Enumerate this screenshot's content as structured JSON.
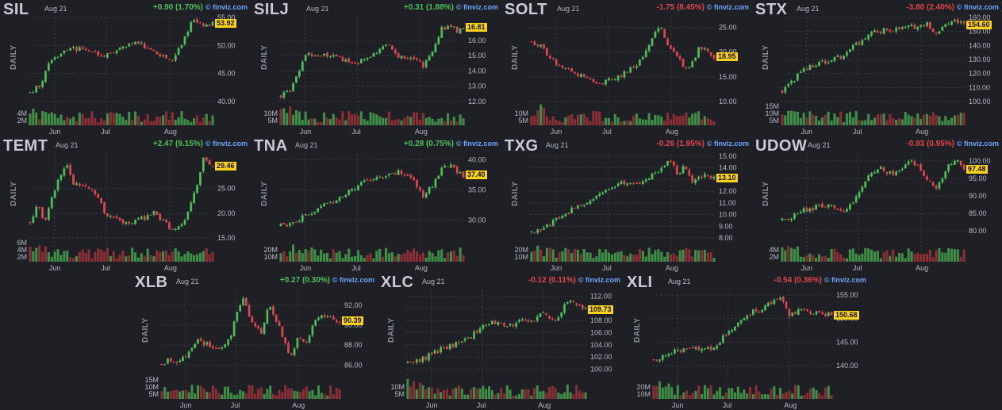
{
  "date_label": "Aug 21",
  "brand": "finviz.com",
  "period_label": "DAILY",
  "colors": {
    "up": "#4cc05a",
    "down": "#e0474c",
    "vol_up": "#3f8f47",
    "vol_down": "#8a2f35",
    "label_bg": "#ffd21a",
    "grid": "#3a3c45"
  },
  "chart_data": [
    {
      "type": "candlestick",
      "ticker": "SIL",
      "change": "+0.90 (1.70%)",
      "direction": "up",
      "last_price": "53.92",
      "ylim": [
        40,
        55
      ],
      "y_ticks": [
        "55.00",
        "50.00",
        "45.00",
        "40.00"
      ],
      "volume_ticks": [
        "4M",
        "2M"
      ],
      "x_ticks": [
        "Jun",
        "Jul",
        "Aug"
      ],
      "price_path": [
        [
          0,
          41.5
        ],
        [
          0.06,
          43
        ],
        [
          0.1,
          46.5
        ],
        [
          0.14,
          47.8
        ],
        [
          0.2,
          49.2
        ],
        [
          0.28,
          49.4
        ],
        [
          0.35,
          48.5
        ],
        [
          0.42,
          48.2
        ],
        [
          0.5,
          49.5
        ],
        [
          0.58,
          51
        ],
        [
          0.64,
          49.2
        ],
        [
          0.72,
          48
        ],
        [
          0.78,
          47.3
        ],
        [
          0.84,
          50.5
        ],
        [
          0.88,
          54.2
        ],
        [
          0.93,
          54.5
        ],
        [
          0.97,
          53.2
        ],
        [
          1,
          53.9
        ]
      ]
    },
    {
      "type": "candlestick",
      "ticker": "SILJ",
      "change": "+0.31 (1.88%)",
      "direction": "up",
      "last_price": "16.81",
      "ylim": [
        12,
        17.5
      ],
      "y_ticks": [
        "16.00",
        "15.00",
        "14.00",
        "13.00",
        "12.00"
      ],
      "volume_ticks": [
        "10M",
        "5M"
      ],
      "x_ticks": [
        "Jun",
        "Jul",
        "Aug"
      ],
      "price_path": [
        [
          0,
          12.4
        ],
        [
          0.06,
          12.9
        ],
        [
          0.1,
          14.1
        ],
        [
          0.15,
          15.2
        ],
        [
          0.2,
          15.1
        ],
        [
          0.28,
          15.0
        ],
        [
          0.35,
          14.7
        ],
        [
          0.42,
          14.5
        ],
        [
          0.5,
          15.0
        ],
        [
          0.58,
          15.7
        ],
        [
          0.64,
          15.0
        ],
        [
          0.72,
          14.8
        ],
        [
          0.78,
          14.4
        ],
        [
          0.84,
          15.5
        ],
        [
          0.88,
          16.8
        ],
        [
          0.93,
          17.0
        ],
        [
          0.97,
          16.5
        ],
        [
          1,
          16.8
        ]
      ]
    },
    {
      "type": "candlestick",
      "ticker": "SOLT",
      "change": "-1.75 (8.45%)",
      "direction": "down",
      "last_price": "18.95",
      "ylim": [
        10,
        27
      ],
      "y_ticks": [
        "25.00",
        "20.00",
        "15.00",
        "10.00"
      ],
      "volume_ticks": [
        "10M",
        "5M"
      ],
      "x_ticks": [
        "Jun",
        "Jul",
        "Aug"
      ],
      "price_path": [
        [
          0,
          22
        ],
        [
          0.04,
          21.5
        ],
        [
          0.1,
          19
        ],
        [
          0.16,
          17
        ],
        [
          0.22,
          16
        ],
        [
          0.3,
          14.5
        ],
        [
          0.36,
          13.5
        ],
        [
          0.42,
          14.5
        ],
        [
          0.5,
          15.5
        ],
        [
          0.56,
          17
        ],
        [
          0.62,
          19.5
        ],
        [
          0.66,
          23
        ],
        [
          0.7,
          25.5
        ],
        [
          0.74,
          22
        ],
        [
          0.8,
          19
        ],
        [
          0.84,
          17
        ],
        [
          0.88,
          17.5
        ],
        [
          0.92,
          21
        ],
        [
          0.96,
          20
        ],
        [
          1,
          19
        ]
      ]
    },
    {
      "type": "candlestick",
      "ticker": "STX",
      "change": "-3.80 (2.40%)",
      "direction": "down",
      "last_price": "154.60",
      "ylim": [
        100,
        160
      ],
      "y_ticks": [
        "160.00",
        "150.00",
        "140.00",
        "130.00",
        "120.00",
        "110.00",
        "100.00"
      ],
      "volume_ticks": [
        "15M",
        "10M",
        "5M"
      ],
      "x_ticks": [
        "Jun",
        "Jul",
        "Aug"
      ],
      "price_path": [
        [
          0,
          108
        ],
        [
          0.04,
          112
        ],
        [
          0.1,
          121
        ],
        [
          0.18,
          127
        ],
        [
          0.25,
          128
        ],
        [
          0.32,
          132
        ],
        [
          0.4,
          140
        ],
        [
          0.48,
          148
        ],
        [
          0.56,
          151
        ],
        [
          0.62,
          151
        ],
        [
          0.7,
          153
        ],
        [
          0.76,
          153.5
        ],
        [
          0.8,
          157
        ],
        [
          0.84,
          146
        ],
        [
          0.88,
          154
        ],
        [
          0.93,
          157
        ],
        [
          0.97,
          157
        ],
        [
          1,
          154.6
        ]
      ]
    },
    {
      "type": "candlestick",
      "ticker": "TEMT",
      "change": "+2.47 (9.15%)",
      "direction": "up",
      "last_price": "29.46",
      "ylim": [
        15,
        32
      ],
      "y_ticks": [
        "25.00",
        "20.00",
        "15.00"
      ],
      "volume_ticks": [
        "6M",
        "4M",
        "2M"
      ],
      "x_ticks": [
        "Jun",
        "Jul",
        "Aug"
      ],
      "price_path": [
        [
          0,
          18
        ],
        [
          0.04,
          22
        ],
        [
          0.08,
          18
        ],
        [
          0.12,
          23
        ],
        [
          0.16,
          27
        ],
        [
          0.2,
          30
        ],
        [
          0.24,
          26
        ],
        [
          0.3,
          26
        ],
        [
          0.36,
          24
        ],
        [
          0.42,
          19.5
        ],
        [
          0.5,
          18.5
        ],
        [
          0.56,
          18
        ],
        [
          0.62,
          19
        ],
        [
          0.68,
          20
        ],
        [
          0.74,
          18
        ],
        [
          0.78,
          16.5
        ],
        [
          0.84,
          18
        ],
        [
          0.88,
          22
        ],
        [
          0.92,
          26
        ],
        [
          0.95,
          31
        ],
        [
          1,
          29.5
        ]
      ]
    },
    {
      "type": "candlestick",
      "ticker": "TNA",
      "change": "+0.28 (0.75%)",
      "direction": "up",
      "last_price": "37.40",
      "ylim": [
        27,
        41
      ],
      "y_ticks": [
        "40.00",
        "35.00",
        "30.00"
      ],
      "volume_ticks": [
        "20M",
        "10M"
      ],
      "x_ticks": [
        "Jun",
        "Jul",
        "Aug"
      ],
      "price_path": [
        [
          0,
          29
        ],
        [
          0.06,
          29.5
        ],
        [
          0.12,
          30.5
        ],
        [
          0.2,
          32
        ],
        [
          0.28,
          33
        ],
        [
          0.35,
          34.5
        ],
        [
          0.42,
          35.5
        ],
        [
          0.5,
          37
        ],
        [
          0.58,
          37.5
        ],
        [
          0.66,
          38
        ],
        [
          0.72,
          37
        ],
        [
          0.78,
          34
        ],
        [
          0.84,
          36
        ],
        [
          0.9,
          39.5
        ],
        [
          0.95,
          38.5
        ],
        [
          1,
          37.4
        ]
      ]
    },
    {
      "type": "candlestick",
      "ticker": "TXG",
      "change": "-0.26 (1.95%)",
      "direction": "down",
      "last_price": "13.10",
      "ylim": [
        8,
        15.2
      ],
      "y_ticks": [
        "15.00",
        "14.00",
        "13.00",
        "12.00",
        "11.00",
        "10.00",
        "9.00",
        "8.00"
      ],
      "volume_ticks": [
        "20M",
        "10M"
      ],
      "x_ticks": [
        "Jun",
        "Jul",
        "Aug"
      ],
      "price_path": [
        [
          0,
          8.6
        ],
        [
          0.06,
          8.7
        ],
        [
          0.12,
          9.4
        ],
        [
          0.2,
          10.2
        ],
        [
          0.28,
          10.9
        ],
        [
          0.35,
          11.4
        ],
        [
          0.42,
          12.3
        ],
        [
          0.5,
          12.7
        ],
        [
          0.58,
          12.6
        ],
        [
          0.64,
          13.2
        ],
        [
          0.7,
          13.8
        ],
        [
          0.76,
          14.8
        ],
        [
          0.8,
          13.4
        ],
        [
          0.84,
          14.1
        ],
        [
          0.88,
          12.9
        ],
        [
          0.92,
          13.3
        ],
        [
          0.96,
          13.4
        ],
        [
          1,
          13.1
        ]
      ]
    },
    {
      "type": "candlestick",
      "ticker": "UDOW",
      "change": "-0.93 (0.95%)",
      "direction": "down",
      "last_price": "97.48",
      "ylim": [
        78,
        102
      ],
      "y_ticks": [
        "100.00",
        "95.00",
        "90.00",
        "85.00",
        "80.00"
      ],
      "volume_ticks": [
        "4M",
        "2M"
      ],
      "x_ticks": [
        "Jun",
        "Jul",
        "Aug"
      ],
      "price_path": [
        [
          0,
          83
        ],
        [
          0.06,
          84
        ],
        [
          0.12,
          86
        ],
        [
          0.2,
          87
        ],
        [
          0.28,
          87
        ],
        [
          0.34,
          85
        ],
        [
          0.4,
          89
        ],
        [
          0.48,
          96
        ],
        [
          0.54,
          98
        ],
        [
          0.6,
          96
        ],
        [
          0.66,
          98
        ],
        [
          0.72,
          100
        ],
        [
          0.78,
          96
        ],
        [
          0.84,
          92
        ],
        [
          0.88,
          95
        ],
        [
          0.92,
          99
        ],
        [
          0.96,
          100
        ],
        [
          1,
          97.5
        ]
      ]
    },
    {
      "type": "candlestick",
      "ticker": "XLB",
      "change": "+0.27 (0.30%)",
      "direction": "up",
      "last_price": "90.39",
      "ylim": [
        85,
        93.5
      ],
      "y_ticks": [
        "92.00",
        "90.00",
        "88.00",
        "86.00"
      ],
      "volume_ticks": [
        "15M",
        "10M",
        "5M"
      ],
      "x_ticks": [
        "Jun",
        "Jul",
        "Aug"
      ],
      "price_path": [
        [
          0,
          86.2
        ],
        [
          0.05,
          86.6
        ],
        [
          0.1,
          86.3
        ],
        [
          0.15,
          87.2
        ],
        [
          0.2,
          88.5
        ],
        [
          0.26,
          88
        ],
        [
          0.32,
          87.5
        ],
        [
          0.38,
          88.5
        ],
        [
          0.42,
          91
        ],
        [
          0.46,
          92.6
        ],
        [
          0.5,
          90.5
        ],
        [
          0.56,
          89
        ],
        [
          0.6,
          92
        ],
        [
          0.64,
          90.5
        ],
        [
          0.68,
          89
        ],
        [
          0.72,
          86.5
        ],
        [
          0.76,
          88.5
        ],
        [
          0.82,
          88.5
        ],
        [
          0.86,
          90.5
        ],
        [
          0.92,
          91
        ],
        [
          1,
          90.4
        ]
      ]
    },
    {
      "type": "candlestick",
      "ticker": "XLC",
      "change": "-0.12 (0.11%)",
      "direction": "down",
      "last_price": "109.73",
      "ylim": [
        99,
        113
      ],
      "y_ticks": [
        "112.00",
        "110.00",
        "108.00",
        "106.00",
        "104.00",
        "102.00",
        "100.00"
      ],
      "volume_ticks": [
        "10M",
        "5M"
      ],
      "x_ticks": [
        "Jun",
        "Jul",
        "Aug"
      ],
      "price_path": [
        [
          0,
          101
        ],
        [
          0.06,
          101.2
        ],
        [
          0.12,
          102.3
        ],
        [
          0.2,
          103.5
        ],
        [
          0.28,
          104.2
        ],
        [
          0.35,
          105
        ],
        [
          0.42,
          107.5
        ],
        [
          0.5,
          107.8
        ],
        [
          0.58,
          107
        ],
        [
          0.64,
          108
        ],
        [
          0.7,
          108
        ],
        [
          0.76,
          109.5
        ],
        [
          0.82,
          108
        ],
        [
          0.86,
          109
        ],
        [
          0.9,
          111.5
        ],
        [
          0.95,
          110.5
        ],
        [
          1,
          109.7
        ]
      ]
    },
    {
      "type": "candlestick",
      "ticker": "XLI",
      "change": "-0.54 (0.36%)",
      "direction": "down",
      "last_price": "150.68",
      "ylim": [
        138,
        156
      ],
      "y_ticks": [
        "155.00",
        "150.00",
        "145.00",
        "140.00"
      ],
      "volume_ticks": [
        "20M",
        "10M"
      ],
      "x_ticks": [
        "Jun",
        "Jul",
        "Aug"
      ],
      "price_path": [
        [
          0,
          141.5
        ],
        [
          0.06,
          142
        ],
        [
          0.12,
          143
        ],
        [
          0.2,
          144
        ],
        [
          0.28,
          143.5
        ],
        [
          0.34,
          144
        ],
        [
          0.4,
          146.5
        ],
        [
          0.48,
          149
        ],
        [
          0.56,
          151.5
        ],
        [
          0.62,
          152
        ],
        [
          0.68,
          154
        ],
        [
          0.72,
          155
        ],
        [
          0.76,
          150
        ],
        [
          0.8,
          151.5
        ],
        [
          0.86,
          151.5
        ],
        [
          0.92,
          151
        ],
        [
          1,
          150.7
        ]
      ]
    }
  ]
}
